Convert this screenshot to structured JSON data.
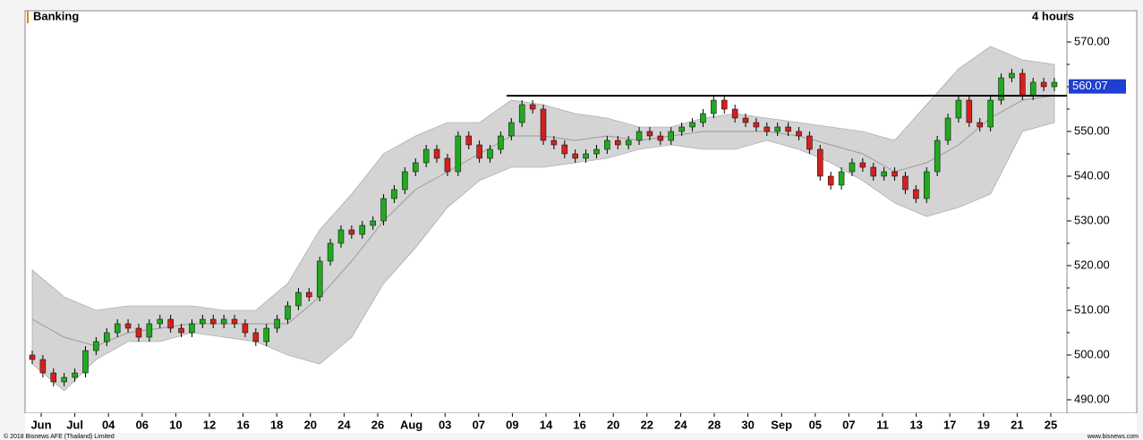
{
  "chart_data": {
    "type": "candlestick",
    "title": "Banking",
    "interval": "4 hours",
    "copyright": "© 2018 Bisnews AFE (Thailand) Limited",
    "source": "www.bisnews.com",
    "categories": [
      "Jun",
      "Jul",
      "04",
      "06",
      "10",
      "12",
      "16",
      "18",
      "20",
      "24",
      "26",
      "Aug",
      "03",
      "07",
      "09",
      "14",
      "16",
      "20",
      "22",
      "24",
      "28",
      "30",
      "Sep",
      "05",
      "07",
      "11",
      "13",
      "17",
      "19",
      "21",
      "25"
    ],
    "open": [
      500,
      499,
      496,
      494,
      495,
      496,
      501,
      503,
      505,
      507,
      506,
      504,
      507,
      508,
      506,
      505,
      507,
      508,
      507,
      508,
      507,
      505,
      503,
      506,
      508,
      511,
      514,
      513,
      521,
      525,
      528,
      527,
      529,
      530,
      535,
      537,
      541,
      543,
      546,
      544,
      541,
      549,
      547,
      544,
      546,
      549,
      552,
      556,
      555,
      548,
      547,
      545,
      544,
      545,
      546,
      548,
      547,
      548,
      550,
      549,
      548,
      550,
      551,
      552,
      554,
      557,
      555,
      553,
      552,
      551,
      550,
      551,
      550,
      549,
      546,
      540,
      538,
      541,
      543,
      542,
      540,
      541,
      540,
      537,
      535,
      541,
      548,
      553,
      557,
      552,
      551,
      557,
      562,
      563,
      558,
      561,
      560
    ],
    "high": [
      501,
      500,
      497,
      496,
      497,
      502,
      504,
      506,
      508,
      508,
      507,
      508,
      509,
      509,
      507,
      508,
      509,
      509,
      509,
      509,
      508,
      506,
      507,
      509,
      512,
      515,
      515,
      522,
      526,
      529,
      529,
      530,
      531,
      536,
      538,
      542,
      544,
      547,
      547,
      545,
      550,
      550,
      548,
      547,
      550,
      553,
      557,
      557,
      556,
      549,
      548,
      546,
      546,
      547,
      549,
      549,
      549,
      551,
      551,
      550,
      551,
      552,
      553,
      555,
      558,
      558,
      556,
      554,
      553,
      552,
      552,
      552,
      551,
      550,
      547,
      541,
      542,
      544,
      544,
      543,
      542,
      542,
      541,
      538,
      542,
      549,
      554,
      558,
      558,
      553,
      558,
      563,
      564,
      564,
      562,
      562,
      562
    ],
    "low": [
      498,
      495,
      493,
      493,
      494,
      495,
      500,
      502,
      504,
      505,
      503,
      503,
      506,
      505,
      504,
      504,
      506,
      506,
      506,
      506,
      504,
      502,
      502,
      505,
      507,
      510,
      512,
      512,
      520,
      524,
      526,
      526,
      528,
      529,
      534,
      536,
      540,
      542,
      543,
      540,
      540,
      546,
      543,
      543,
      545,
      548,
      551,
      554,
      547,
      546,
      544,
      543,
      543,
      544,
      545,
      546,
      546,
      547,
      548,
      547,
      547,
      549,
      550,
      551,
      553,
      554,
      552,
      551,
      550,
      549,
      549,
      549,
      548,
      545,
      539,
      537,
      537,
      540,
      541,
      539,
      539,
      539,
      536,
      534,
      534,
      540,
      547,
      552,
      551,
      550,
      550,
      556,
      561,
      557,
      557,
      559,
      559
    ],
    "close": [
      499,
      496,
      494,
      495,
      496,
      501,
      503,
      505,
      507,
      506,
      504,
      507,
      508,
      506,
      505,
      507,
      508,
      507,
      508,
      507,
      505,
      503,
      506,
      508,
      511,
      514,
      513,
      521,
      525,
      528,
      527,
      529,
      530,
      535,
      537,
      541,
      543,
      546,
      544,
      541,
      549,
      547,
      544,
      546,
      549,
      552,
      556,
      555,
      548,
      547,
      545,
      544,
      545,
      546,
      548,
      547,
      548,
      550,
      549,
      548,
      550,
      551,
      552,
      554,
      557,
      555,
      553,
      552,
      551,
      550,
      551,
      550,
      549,
      546,
      540,
      538,
      541,
      543,
      542,
      540,
      541,
      540,
      537,
      535,
      541,
      548,
      553,
      557,
      552,
      551,
      557,
      562,
      563,
      558,
      561,
      560,
      561
    ],
    "up_color": "#1faa1f",
    "down_color": "#d42020",
    "band_upper": [
      519,
      513,
      510,
      511,
      511,
      511,
      510,
      510,
      516,
      528,
      536,
      545,
      549,
      552,
      552,
      557,
      556,
      554,
      553,
      551,
      551,
      553,
      554,
      553,
      552,
      551,
      550,
      548,
      556,
      564,
      569,
      566,
      565
    ],
    "band_middle": [
      508,
      504,
      502,
      505,
      506,
      507,
      507,
      507,
      507,
      513,
      521,
      530,
      537,
      541,
      545,
      549,
      549,
      548,
      549,
      548,
      549,
      550,
      550,
      550,
      549,
      547,
      545,
      541,
      543,
      547,
      553,
      557,
      558
    ],
    "band_lower": [
      498,
      492,
      499,
      503,
      503,
      505,
      504,
      503,
      500,
      498,
      504,
      516,
      524,
      533,
      539,
      542,
      542,
      543,
      544,
      546,
      547,
      546,
      546,
      548,
      546,
      543,
      539,
      534,
      531,
      533,
      536,
      550,
      552
    ],
    "band_color": "#d4d4d4",
    "middle_color": "#9a9a9a",
    "hline": 558,
    "last_price": 560.07,
    "ylim": [
      487,
      577
    ],
    "yticks": [
      {
        "value": 490,
        "label": "490.00"
      },
      {
        "value": 500,
        "label": "500.00"
      },
      {
        "value": 510,
        "label": "510.00"
      },
      {
        "value": 520,
        "label": "520.00"
      },
      {
        "value": 530,
        "label": "530.00"
      },
      {
        "value": 540,
        "label": "540.00"
      },
      {
        "value": 550,
        "label": "550.00"
      },
      {
        "value": 560,
        "label": "560.00"
      },
      {
        "value": 570,
        "label": "570.00"
      }
    ]
  }
}
